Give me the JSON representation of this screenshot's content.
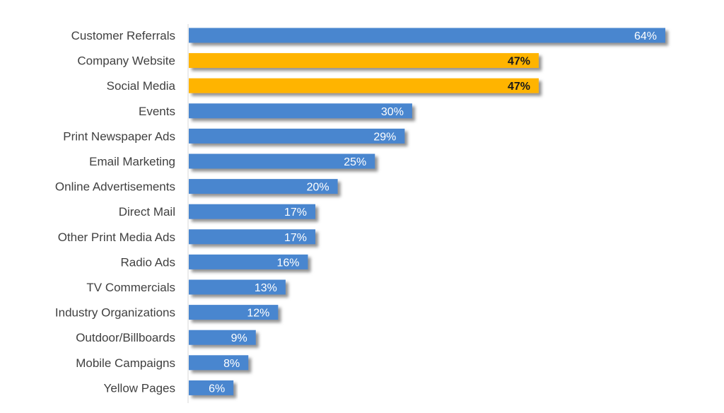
{
  "chart_data": {
    "type": "bar",
    "orientation": "horizontal",
    "categories": [
      "Customer Referrals",
      "Company Website",
      "Social Media",
      "Events",
      "Print Newspaper Ads",
      "Email Marketing",
      "Online Advertisements",
      "Direct Mail",
      "Other Print Media Ads",
      "Radio Ads",
      "TV Commercials",
      "Industry Organizations",
      "Outdoor/Billboards",
      "Mobile Campaigns",
      "Yellow Pages"
    ],
    "values": [
      64,
      47,
      47,
      30,
      29,
      25,
      20,
      17,
      17,
      16,
      13,
      12,
      9,
      8,
      6
    ],
    "data_labels": [
      "64%",
      "47%",
      "47%",
      "30%",
      "29%",
      "25%",
      "20%",
      "17%",
      "17%",
      "16%",
      "13%",
      "12%",
      "9%",
      "8%",
      "6%"
    ],
    "highlighted": [
      false,
      true,
      true,
      false,
      false,
      false,
      false,
      false,
      false,
      false,
      false,
      false,
      false,
      false,
      false
    ],
    "unit": "%",
    "xlim": [
      0,
      64
    ],
    "title": "",
    "xlabel": "",
    "ylabel": "",
    "grid": false,
    "legend": "none",
    "colors": {
      "bar": "#4a86cf",
      "highlight": "#ffb400",
      "label_on_bar": "#ffffff",
      "label_on_highlight": "#1a1a1a",
      "category_text": "#404040",
      "axis": "#d9d9d9",
      "shadow": "#7f7f7f"
    }
  }
}
